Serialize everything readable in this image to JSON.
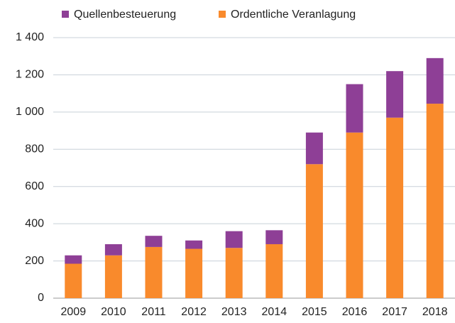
{
  "chart_data": {
    "type": "stacked_bar",
    "categories": [
      "2009",
      "2010",
      "2011",
      "2012",
      "2013",
      "2014",
      "2015",
      "2016",
      "2017",
      "2018"
    ],
    "series": [
      {
        "name": "Quellenbesteuerung",
        "color": "#8e3f96",
        "values": [
          45,
          60,
          60,
          45,
          90,
          75,
          170,
          260,
          250,
          245
        ]
      },
      {
        "name": "Ordentliche Veranlagung",
        "color": "#f98a2c",
        "values": [
          185,
          230,
          275,
          265,
          270,
          290,
          720,
          890,
          970,
          1045
        ]
      }
    ],
    "ylim": [
      0,
      1400
    ],
    "yticks": [
      0,
      200,
      400,
      600,
      800,
      {
        "value": 1000,
        "label": "1 000"
      },
      {
        "value": 1200,
        "label": "1 200"
      },
      {
        "value": 1400,
        "label": "1 400"
      }
    ],
    "grid": true
  }
}
